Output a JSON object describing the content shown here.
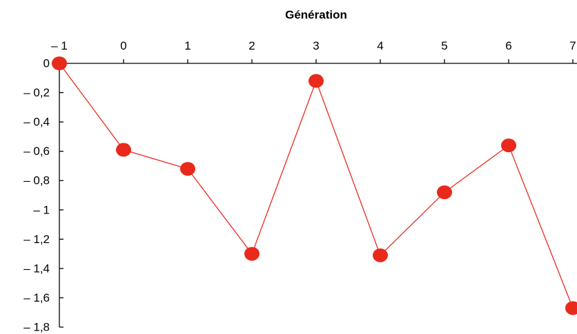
{
  "chart_data": {
    "type": "line",
    "title": "",
    "xlabel": "Génération",
    "ylabel": "",
    "x_axis_position": "top",
    "x": [
      -1,
      0,
      1,
      2,
      3,
      4,
      5,
      6,
      7
    ],
    "x_tick_labels": [
      "– 1",
      "0",
      "1",
      "2",
      "3",
      "4",
      "5",
      "6",
      "7"
    ],
    "y_ticks": [
      0,
      -0.2,
      -0.4,
      -0.6,
      -0.8,
      -1,
      -1.2,
      -1.4,
      -1.6,
      -1.8
    ],
    "y_tick_labels": [
      "0",
      "– 0,2",
      "– 0,4",
      "– 0,6",
      "– 0,8",
      "– 1",
      "– 1,2",
      "– 1,4",
      "– 1,6",
      "– 1,8"
    ],
    "xlim": [
      -1,
      7
    ],
    "ylim": [
      -1.8,
      0
    ],
    "grid": false,
    "legend": "none",
    "series": [
      {
        "values": [
          0,
          -0.59,
          -0.72,
          -1.3,
          -0.12,
          -1.31,
          -0.88,
          -0.56,
          -1.67
        ],
        "color": "#e8291c"
      }
    ]
  }
}
